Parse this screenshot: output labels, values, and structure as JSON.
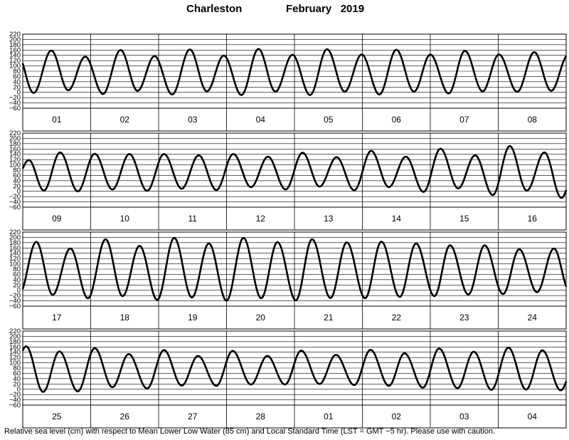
{
  "header": {
    "station": "Charleston",
    "month_year": "February   2019"
  },
  "footer": "Relative sea level (cm) with respect to Mean Lower Low Water (85 cm) and Local Standard Time (LST = GMT −5 hr). Please use with caution.",
  "chart_data": {
    "type": "line",
    "title": "Charleston February 2019",
    "ylabel": "Relative sea level (cm)",
    "ylim": [
      -60,
      220
    ],
    "yticks": [
      "220",
      "200",
      "180",
      "160",
      "140",
      "120",
      "100",
      "80",
      "60",
      "40",
      "20",
      "0",
      "−20",
      "−40",
      "−60"
    ],
    "grid": true,
    "panels": [
      {
        "days": [
          "01",
          "02",
          "03",
          "04",
          "05",
          "06",
          "07",
          "08"
        ],
        "highs": [
          [
            0.42,
            158
          ],
          [
            0.92,
            135
          ],
          [
            1.44,
            160
          ],
          [
            1.94,
            137
          ],
          [
            2.46,
            162
          ],
          [
            2.96,
            139
          ],
          [
            3.47,
            164
          ],
          [
            3.97,
            142
          ],
          [
            4.48,
            163
          ],
          [
            4.99,
            143
          ],
          [
            5.5,
            161
          ],
          [
            6.0,
            143
          ],
          [
            6.51,
            157
          ],
          [
            7.01,
            143
          ],
          [
            7.53,
            152
          ],
          [
            8.03,
            142
          ]
        ],
        "lows": [
          [
            0.16,
            -2
          ],
          [
            0.67,
            8
          ],
          [
            1.18,
            -6
          ],
          [
            1.69,
            6
          ],
          [
            2.2,
            -8
          ],
          [
            2.71,
            4
          ],
          [
            3.22,
            -10
          ],
          [
            3.72,
            3
          ],
          [
            4.23,
            -10
          ],
          [
            4.74,
            3
          ],
          [
            5.25,
            -8
          ],
          [
            5.76,
            3
          ],
          [
            6.27,
            -4
          ],
          [
            6.77,
            4
          ],
          [
            7.28,
            2
          ],
          [
            7.78,
            6
          ]
        ]
      },
      {
        "days": [
          "09",
          "10",
          "11",
          "12",
          "13",
          "14",
          "15",
          "16"
        ],
        "highs": [
          [
            0.09,
            118
          ],
          [
            0.55,
            147
          ],
          [
            1.06,
            142
          ],
          [
            1.57,
            141
          ],
          [
            2.08,
            141
          ],
          [
            2.59,
            136
          ],
          [
            3.1,
            141
          ],
          [
            3.61,
            131
          ],
          [
            4.12,
            146
          ],
          [
            4.62,
            129
          ],
          [
            5.13,
            153
          ],
          [
            5.64,
            131
          ],
          [
            6.15,
            161
          ],
          [
            6.66,
            136
          ],
          [
            7.17,
            171
          ],
          [
            7.68,
            147
          ]
        ],
        "lows": [
          [
            0.31,
            3
          ],
          [
            0.81,
            0
          ],
          [
            1.32,
            7
          ],
          [
            1.83,
            2
          ],
          [
            2.34,
            10
          ],
          [
            2.85,
            5
          ],
          [
            3.36,
            16
          ],
          [
            3.87,
            7
          ],
          [
            4.37,
            18
          ],
          [
            4.88,
            4
          ],
          [
            5.39,
            16
          ],
          [
            5.9,
            -2
          ],
          [
            6.41,
            11
          ],
          [
            6.92,
            -14
          ],
          [
            7.42,
            3
          ],
          [
            7.93,
            -25
          ]
        ]
      },
      {
        "days": [
          "17",
          "18",
          "19",
          "20",
          "21",
          "22",
          "23",
          "24"
        ],
        "highs": [
          [
            0.2,
            183
          ],
          [
            0.7,
            158
          ],
          [
            1.22,
            193
          ],
          [
            1.72,
            168
          ],
          [
            2.23,
            198
          ],
          [
            2.74,
            177
          ],
          [
            3.25,
            198
          ],
          [
            3.75,
            182
          ],
          [
            4.26,
            193
          ],
          [
            4.77,
            181
          ],
          [
            5.28,
            184
          ],
          [
            5.79,
            177
          ],
          [
            6.29,
            170
          ],
          [
            6.8,
            170
          ],
          [
            7.31,
            155
          ],
          [
            7.82,
            158
          ]
        ],
        "lows": [
          [
            0.44,
            -17
          ],
          [
            0.96,
            -30
          ],
          [
            1.47,
            -22
          ],
          [
            1.98,
            -36
          ],
          [
            2.49,
            -27
          ],
          [
            3.0,
            -39
          ],
          [
            3.51,
            -30
          ],
          [
            4.02,
            -38
          ],
          [
            4.53,
            -29
          ],
          [
            5.04,
            -30
          ],
          [
            5.55,
            -25
          ],
          [
            6.06,
            -22
          ],
          [
            6.56,
            -16
          ],
          [
            7.07,
            -14
          ],
          [
            7.57,
            -7
          ],
          [
            8.05,
            -4
          ]
        ]
      },
      {
        "days": [
          "25",
          "26",
          "27",
          "28",
          "01",
          "02",
          "03",
          "04"
        ],
        "highs": [
          [
            0.05,
            162
          ],
          [
            0.54,
            143
          ],
          [
            1.06,
            155
          ],
          [
            1.56,
            133
          ],
          [
            2.08,
            148
          ],
          [
            2.58,
            126
          ],
          [
            3.09,
            145
          ],
          [
            3.6,
            126
          ],
          [
            4.1,
            146
          ],
          [
            4.61,
            130
          ],
          [
            5.12,
            149
          ],
          [
            5.62,
            136
          ],
          [
            6.13,
            154
          ],
          [
            6.64,
            142
          ],
          [
            7.15,
            157
          ],
          [
            7.65,
            147
          ]
        ],
        "lows": [
          [
            0.3,
            -10
          ],
          [
            0.81,
            -8
          ],
          [
            1.32,
            8
          ],
          [
            1.83,
            3
          ],
          [
            2.34,
            14
          ],
          [
            2.85,
            13
          ],
          [
            3.36,
            18
          ],
          [
            3.86,
            18
          ],
          [
            4.37,
            20
          ],
          [
            4.88,
            16
          ],
          [
            5.39,
            13
          ],
          [
            5.89,
            6
          ],
          [
            6.4,
            4
          ],
          [
            6.9,
            -2
          ],
          [
            7.41,
            -1
          ],
          [
            7.92,
            -4
          ]
        ]
      }
    ]
  }
}
